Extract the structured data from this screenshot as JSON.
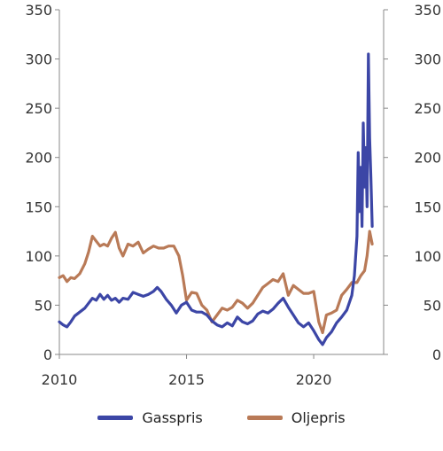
{
  "chart_data": {
    "type": "line",
    "title": "",
    "xlabel": "",
    "ylabel": "",
    "xlim": [
      2010,
      2022.75
    ],
    "ylim": [
      0,
      350
    ],
    "x_ticks": [
      "2010",
      "2015",
      "2020"
    ],
    "y_ticks_left": [
      "0",
      "50",
      "100",
      "150",
      "200",
      "250",
      "300",
      "350"
    ],
    "y_ticks_right": [
      "0",
      "50",
      "100",
      "150",
      "200",
      "250",
      "300",
      "350"
    ],
    "grid": false,
    "legend_position": "bottom",
    "series": [
      {
        "name": "Gasspris",
        "color": "#3c46a6",
        "points": [
          [
            2010.0,
            33
          ],
          [
            2010.15,
            30
          ],
          [
            2010.3,
            28
          ],
          [
            2010.45,
            33
          ],
          [
            2010.6,
            39
          ],
          [
            2010.8,
            43
          ],
          [
            2011.0,
            47
          ],
          [
            2011.15,
            52
          ],
          [
            2011.3,
            57
          ],
          [
            2011.45,
            55
          ],
          [
            2011.6,
            61
          ],
          [
            2011.75,
            56
          ],
          [
            2011.9,
            60
          ],
          [
            2012.05,
            55
          ],
          [
            2012.2,
            57
          ],
          [
            2012.35,
            53
          ],
          [
            2012.5,
            57
          ],
          [
            2012.7,
            56
          ],
          [
            2012.9,
            63
          ],
          [
            2013.1,
            61
          ],
          [
            2013.3,
            59
          ],
          [
            2013.5,
            61
          ],
          [
            2013.7,
            64
          ],
          [
            2013.85,
            68
          ],
          [
            2014.0,
            64
          ],
          [
            2014.2,
            56
          ],
          [
            2014.4,
            50
          ],
          [
            2014.6,
            42
          ],
          [
            2014.8,
            50
          ],
          [
            2015.0,
            53
          ],
          [
            2015.2,
            45
          ],
          [
            2015.4,
            43
          ],
          [
            2015.6,
            43
          ],
          [
            2015.8,
            40
          ],
          [
            2016.0,
            34
          ],
          [
            2016.2,
            30
          ],
          [
            2016.4,
            28
          ],
          [
            2016.6,
            32
          ],
          [
            2016.8,
            29
          ],
          [
            2017.0,
            38
          ],
          [
            2017.2,
            33
          ],
          [
            2017.4,
            31
          ],
          [
            2017.6,
            34
          ],
          [
            2017.8,
            41
          ],
          [
            2018.0,
            44
          ],
          [
            2018.2,
            42
          ],
          [
            2018.4,
            46
          ],
          [
            2018.6,
            52
          ],
          [
            2018.8,
            57
          ],
          [
            2019.0,
            48
          ],
          [
            2019.2,
            40
          ],
          [
            2019.4,
            32
          ],
          [
            2019.6,
            28
          ],
          [
            2019.8,
            32
          ],
          [
            2020.0,
            24
          ],
          [
            2020.2,
            15
          ],
          [
            2020.35,
            10
          ],
          [
            2020.5,
            17
          ],
          [
            2020.7,
            23
          ],
          [
            2020.9,
            32
          ],
          [
            2021.1,
            38
          ],
          [
            2021.3,
            45
          ],
          [
            2021.5,
            60
          ],
          [
            2021.6,
            80
          ],
          [
            2021.7,
            120
          ],
          [
            2021.75,
            205
          ],
          [
            2021.8,
            145
          ],
          [
            2021.85,
            190
          ],
          [
            2021.9,
            130
          ],
          [
            2021.95,
            235
          ],
          [
            2022.0,
            170
          ],
          [
            2022.05,
            210
          ],
          [
            2022.1,
            150
          ],
          [
            2022.15,
            305
          ],
          [
            2022.2,
            220
          ],
          [
            2022.25,
            180
          ],
          [
            2022.3,
            130
          ]
        ]
      },
      {
        "name": "Oljepris",
        "color": "#b97a57",
        "points": [
          [
            2010.0,
            78
          ],
          [
            2010.15,
            80
          ],
          [
            2010.3,
            74
          ],
          [
            2010.45,
            78
          ],
          [
            2010.6,
            77
          ],
          [
            2010.8,
            82
          ],
          [
            2011.0,
            92
          ],
          [
            2011.15,
            104
          ],
          [
            2011.3,
            120
          ],
          [
            2011.45,
            115
          ],
          [
            2011.6,
            110
          ],
          [
            2011.75,
            112
          ],
          [
            2011.9,
            110
          ],
          [
            2012.05,
            118
          ],
          [
            2012.2,
            124
          ],
          [
            2012.35,
            108
          ],
          [
            2012.5,
            100
          ],
          [
            2012.7,
            112
          ],
          [
            2012.9,
            110
          ],
          [
            2013.1,
            114
          ],
          [
            2013.3,
            103
          ],
          [
            2013.5,
            107
          ],
          [
            2013.7,
            110
          ],
          [
            2013.9,
            108
          ],
          [
            2014.1,
            108
          ],
          [
            2014.3,
            110
          ],
          [
            2014.5,
            110
          ],
          [
            2014.7,
            100
          ],
          [
            2014.85,
            80
          ],
          [
            2015.0,
            55
          ],
          [
            2015.2,
            63
          ],
          [
            2015.4,
            62
          ],
          [
            2015.6,
            50
          ],
          [
            2015.8,
            45
          ],
          [
            2016.0,
            33
          ],
          [
            2016.2,
            40
          ],
          [
            2016.4,
            47
          ],
          [
            2016.6,
            45
          ],
          [
            2016.8,
            48
          ],
          [
            2017.0,
            55
          ],
          [
            2017.2,
            52
          ],
          [
            2017.4,
            47
          ],
          [
            2017.6,
            52
          ],
          [
            2017.8,
            60
          ],
          [
            2018.0,
            68
          ],
          [
            2018.2,
            72
          ],
          [
            2018.4,
            76
          ],
          [
            2018.6,
            74
          ],
          [
            2018.8,
            82
          ],
          [
            2019.0,
            60
          ],
          [
            2019.2,
            70
          ],
          [
            2019.4,
            66
          ],
          [
            2019.6,
            62
          ],
          [
            2019.8,
            62
          ],
          [
            2020.0,
            64
          ],
          [
            2020.2,
            33
          ],
          [
            2020.35,
            22
          ],
          [
            2020.5,
            40
          ],
          [
            2020.7,
            42
          ],
          [
            2020.9,
            45
          ],
          [
            2021.1,
            60
          ],
          [
            2021.3,
            66
          ],
          [
            2021.5,
            73
          ],
          [
            2021.7,
            73
          ],
          [
            2021.85,
            80
          ],
          [
            2022.0,
            85
          ],
          [
            2022.1,
            100
          ],
          [
            2022.2,
            125
          ],
          [
            2022.3,
            112
          ]
        ]
      }
    ]
  }
}
